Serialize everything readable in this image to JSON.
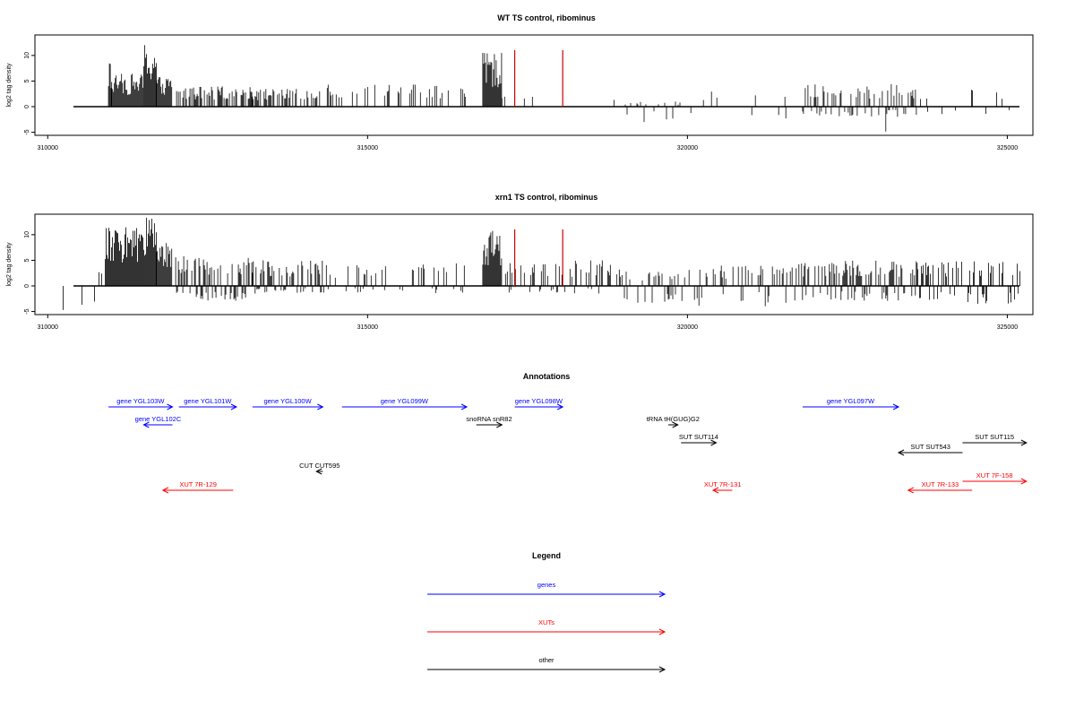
{
  "colors": {
    "gene": "#0000ff",
    "xut": "#ff0000",
    "other": "#000000",
    "marker": "#cc0000",
    "bars": "#000000"
  },
  "chart_data": [
    {
      "type": "bar",
      "title": "WT TS control, ribominus",
      "ylabel": "log2 tag density",
      "xlim": [
        309800,
        325400
      ],
      "ylim": [
        -5.6,
        14
      ],
      "xticks": [
        310000,
        315000,
        320000,
        325000
      ],
      "yticks": [
        -5,
        0,
        5,
        10
      ],
      "marker_lines": [
        317300,
        318050
      ],
      "regions": [
        {
          "start": 310200,
          "end": 310900,
          "max": 2.5,
          "min": 0,
          "density": 0.06
        },
        {
          "start": 310950,
          "end": 311000,
          "max": 8.5,
          "min": 0,
          "density": 1.0
        },
        {
          "start": 311000,
          "end": 311500,
          "max": 6.5,
          "min": 0,
          "density": 1.0
        },
        {
          "start": 311500,
          "end": 311700,
          "max": 12.5,
          "min": 0,
          "density": 1.0
        },
        {
          "start": 311700,
          "end": 311950,
          "max": 6.0,
          "min": 0,
          "density": 1.0
        },
        {
          "start": 312000,
          "end": 313200,
          "max": 4.0,
          "min": 0,
          "density": 0.55
        },
        {
          "start": 313200,
          "end": 314300,
          "max": 3.5,
          "min": 0,
          "density": 0.5
        },
        {
          "start": 314300,
          "end": 316600,
          "max": 4.5,
          "min": 0,
          "density": 0.2
        },
        {
          "start": 316800,
          "end": 317100,
          "max": 10.5,
          "min": 0,
          "density": 1.0
        },
        {
          "start": 317100,
          "end": 319000,
          "max": 2.5,
          "min": 0,
          "density": 0.05
        },
        {
          "start": 319000,
          "end": 319900,
          "max": 1.0,
          "min": -3,
          "density": 0.25
        },
        {
          "start": 319900,
          "end": 321700,
          "max": 3.5,
          "min": -3,
          "density": 0.1
        },
        {
          "start": 321800,
          "end": 323600,
          "max": 4.5,
          "min": -2,
          "density": 0.5
        },
        {
          "start": 323100,
          "end": 323150,
          "max": 0,
          "min": -5,
          "density": 1.0
        },
        {
          "start": 323600,
          "end": 325100,
          "max": 3.5,
          "min": -2,
          "density": 0.1
        }
      ]
    },
    {
      "type": "bar",
      "title": "xrn1 TS control, ribominus",
      "ylabel": "log2 tag density",
      "xlim": [
        309800,
        325400
      ],
      "ylim": [
        -5.6,
        14
      ],
      "xticks": [
        310000,
        315000,
        320000,
        325000
      ],
      "yticks": [
        -5,
        0,
        5,
        10
      ],
      "marker_lines": [
        317300,
        318050
      ],
      "regions": [
        {
          "start": 310200,
          "end": 310900,
          "max": 4.5,
          "min": -5,
          "density": 0.15
        },
        {
          "start": 310900,
          "end": 311500,
          "max": 11.5,
          "min": 0,
          "density": 1.0
        },
        {
          "start": 311500,
          "end": 311700,
          "max": 13.5,
          "min": 0,
          "density": 1.0
        },
        {
          "start": 311700,
          "end": 311950,
          "max": 8.5,
          "min": 0,
          "density": 1.0
        },
        {
          "start": 312000,
          "end": 313200,
          "max": 6.0,
          "min": -3,
          "density": 0.75
        },
        {
          "start": 313200,
          "end": 314300,
          "max": 5.0,
          "min": -1.5,
          "density": 0.7
        },
        {
          "start": 314300,
          "end": 316600,
          "max": 4.5,
          "min": -1.5,
          "density": 0.3
        },
        {
          "start": 316800,
          "end": 317100,
          "max": 11.0,
          "min": 0,
          "density": 1.0
        },
        {
          "start": 317100,
          "end": 319000,
          "max": 5.0,
          "min": -1.5,
          "density": 0.4
        },
        {
          "start": 319000,
          "end": 319900,
          "max": 3.0,
          "min": -4,
          "density": 0.4
        },
        {
          "start": 319900,
          "end": 321700,
          "max": 4.0,
          "min": -4,
          "density": 0.35
        },
        {
          "start": 321700,
          "end": 323600,
          "max": 5.0,
          "min": -3,
          "density": 0.6
        },
        {
          "start": 323600,
          "end": 325200,
          "max": 5.0,
          "min": -3.5,
          "density": 0.5
        }
      ]
    }
  ],
  "annotations": {
    "title": "Annotations",
    "items": [
      {
        "label": "gene YGL103W",
        "type": "gene",
        "start": 310950,
        "end": 311950,
        "row": 0
      },
      {
        "label": "gene YGL102C",
        "type": "gene",
        "start": 311950,
        "end": 311500,
        "row": 1
      },
      {
        "label": "gene YGL101W",
        "type": "gene",
        "start": 312050,
        "end": 312950,
        "row": 0
      },
      {
        "label": "gene YGL100W",
        "type": "gene",
        "start": 313200,
        "end": 314300,
        "row": 0
      },
      {
        "label": "gene YGL099W",
        "type": "gene",
        "start": 314600,
        "end": 316550,
        "row": 0
      },
      {
        "label": "gene YGL098W",
        "type": "gene",
        "start": 317300,
        "end": 318050,
        "row": 0
      },
      {
        "label": "gene YGL097W",
        "type": "gene",
        "start": 321800,
        "end": 323300,
        "row": 0
      },
      {
        "label": "snoRNA snR82",
        "type": "other",
        "start": 316700,
        "end": 317100,
        "row": 1
      },
      {
        "label": "tRNA tH(GUG)G2",
        "type": "other",
        "start": 319700,
        "end": 319850,
        "row": 1
      },
      {
        "label": "SUT SUT114",
        "type": "other",
        "start": 319900,
        "end": 320450,
        "row": 2
      },
      {
        "label": "SUT SUT543",
        "type": "other",
        "start": 324300,
        "end": 323300,
        "row": 3
      },
      {
        "label": "SUT SUT115",
        "type": "other",
        "start": 324300,
        "end": 325300,
        "row": 2
      },
      {
        "label": "CUT CUT595",
        "type": "other",
        "start": 314300,
        "end": 314200,
        "row": 4
      },
      {
        "label": "XUT 7R-129",
        "type": "xut",
        "start": 312900,
        "end": 311800,
        "row": 5
      },
      {
        "label": "XUT 7R-131",
        "type": "xut",
        "start": 320700,
        "end": 320400,
        "row": 5
      },
      {
        "label": "XUT 7R-133",
        "type": "xut",
        "start": 324450,
        "end": 323450,
        "row": 5
      },
      {
        "label": "XUT 7F-158",
        "type": "xut",
        "start": 324300,
        "end": 325300,
        "row": 4.5
      }
    ]
  },
  "legend": {
    "title": "Legend",
    "items": [
      {
        "label": "genes",
        "type": "gene"
      },
      {
        "label": "XUTs",
        "type": "xut"
      },
      {
        "label": "other",
        "type": "other"
      }
    ]
  }
}
